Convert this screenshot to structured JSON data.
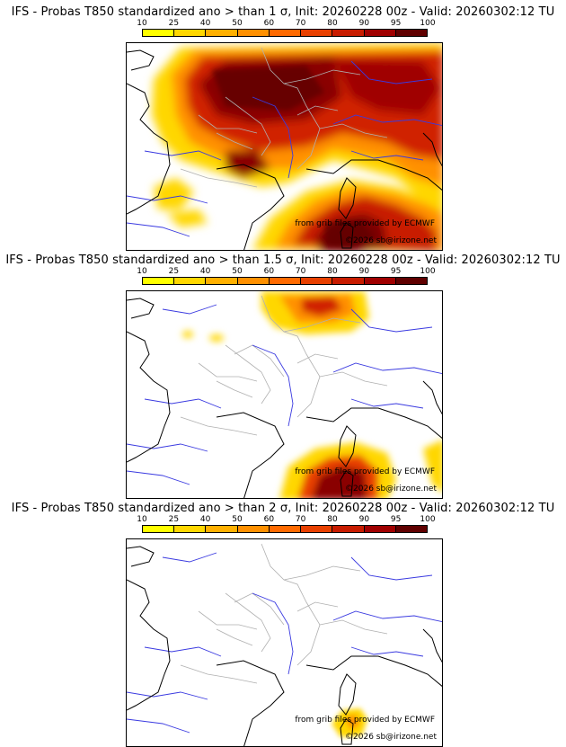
{
  "panels": [
    {
      "title": "IFS - Probas T850  standardized ano > than 1 σ, Init: 20260228 00z - Valid: 20260302:12 TU",
      "credit": "from grib files provided by ECMWF",
      "copyright": "©2026 sb@irizone.net"
    },
    {
      "title": "IFS - Probas T850  standardized ano > than 1.5 σ, Init: 20260228 00z - Valid: 20260302:12 TU",
      "credit": "from grib files provided by ECMWF",
      "copyright": "©2026 sb@irizone.net"
    },
    {
      "title": "IFS - Probas T850  standardized ano > than 2 σ, Init: 20260228 00z - Valid: 20260302:12 TU",
      "credit": "from grib files provided by ECMWF",
      "copyright": "©2026 sb@irizone.net"
    }
  ],
  "colorbar": {
    "ticks": [
      "10",
      "25",
      "40",
      "50",
      "60",
      "70",
      "80",
      "90",
      "95",
      "100"
    ],
    "colors": [
      "#ffff00",
      "#ffd700",
      "#ffb000",
      "#ff9000",
      "#ff6a00",
      "#e84000",
      "#c81c00",
      "#a00000",
      "#600000"
    ]
  },
  "palette": {
    "coastline": "#000000",
    "rivers": "#3a3ae0",
    "borders": "#b0b0b0"
  }
}
